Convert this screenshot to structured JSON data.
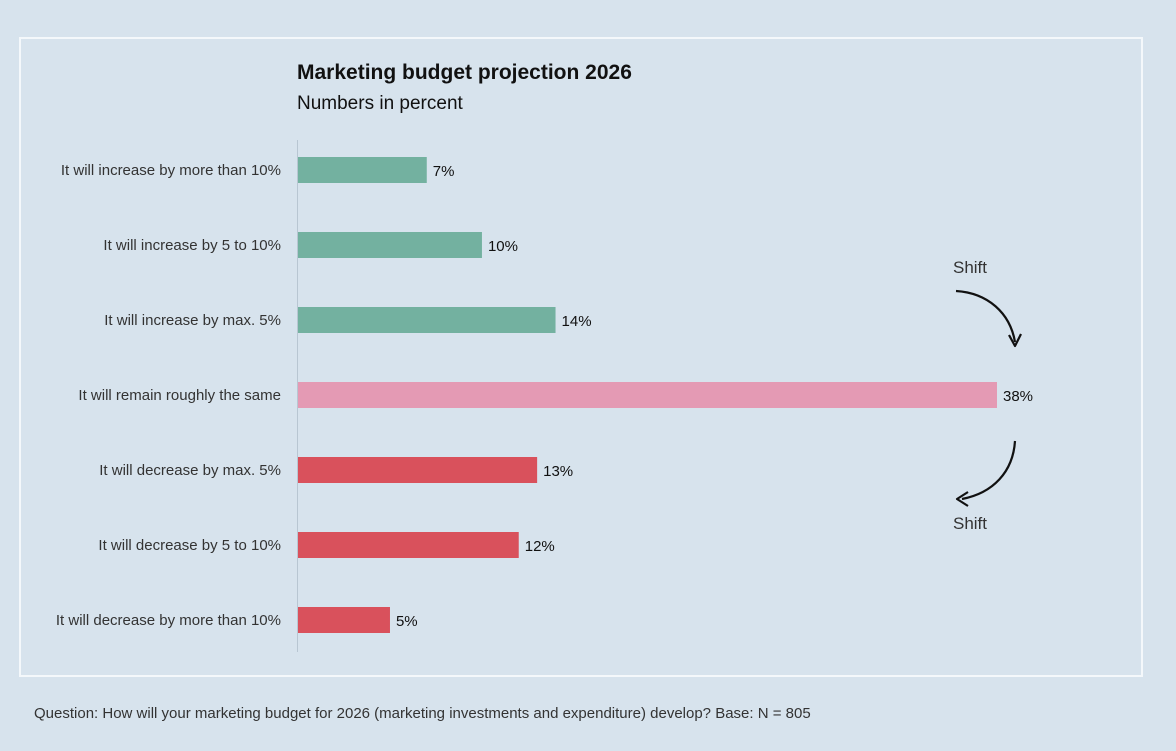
{
  "chart_data": {
    "type": "bar",
    "orientation": "horizontal",
    "title": "Marketing budget projection 2026",
    "subtitle": "Numbers in percent",
    "categories": [
      "It will increase by more than 10%",
      "It will increase by 5 to 10%",
      "It will increase by max. 5%",
      "It will remain roughly the same",
      "It will decrease by max. 5%",
      "It will decrease by 5 to 10%",
      "It will decrease by more than 10%"
    ],
    "values": [
      7,
      10,
      14,
      38,
      13,
      12,
      5
    ],
    "value_suffix": "%",
    "bar_colors": [
      "#73b1a0",
      "#73b1a0",
      "#73b1a0",
      "#e49ab4",
      "#d9515c",
      "#d9515c",
      "#d9515c"
    ],
    "xlim": [
      0,
      38
    ],
    "annotations": [
      {
        "text": "Shift",
        "arrow": "curved-down-right"
      },
      {
        "text": "Shift",
        "arrow": "curved-down-left"
      }
    ]
  },
  "footnote": "Question: How will your marketing budget for 2026 (marketing investments and expenditure) develop? Base: N = 805"
}
